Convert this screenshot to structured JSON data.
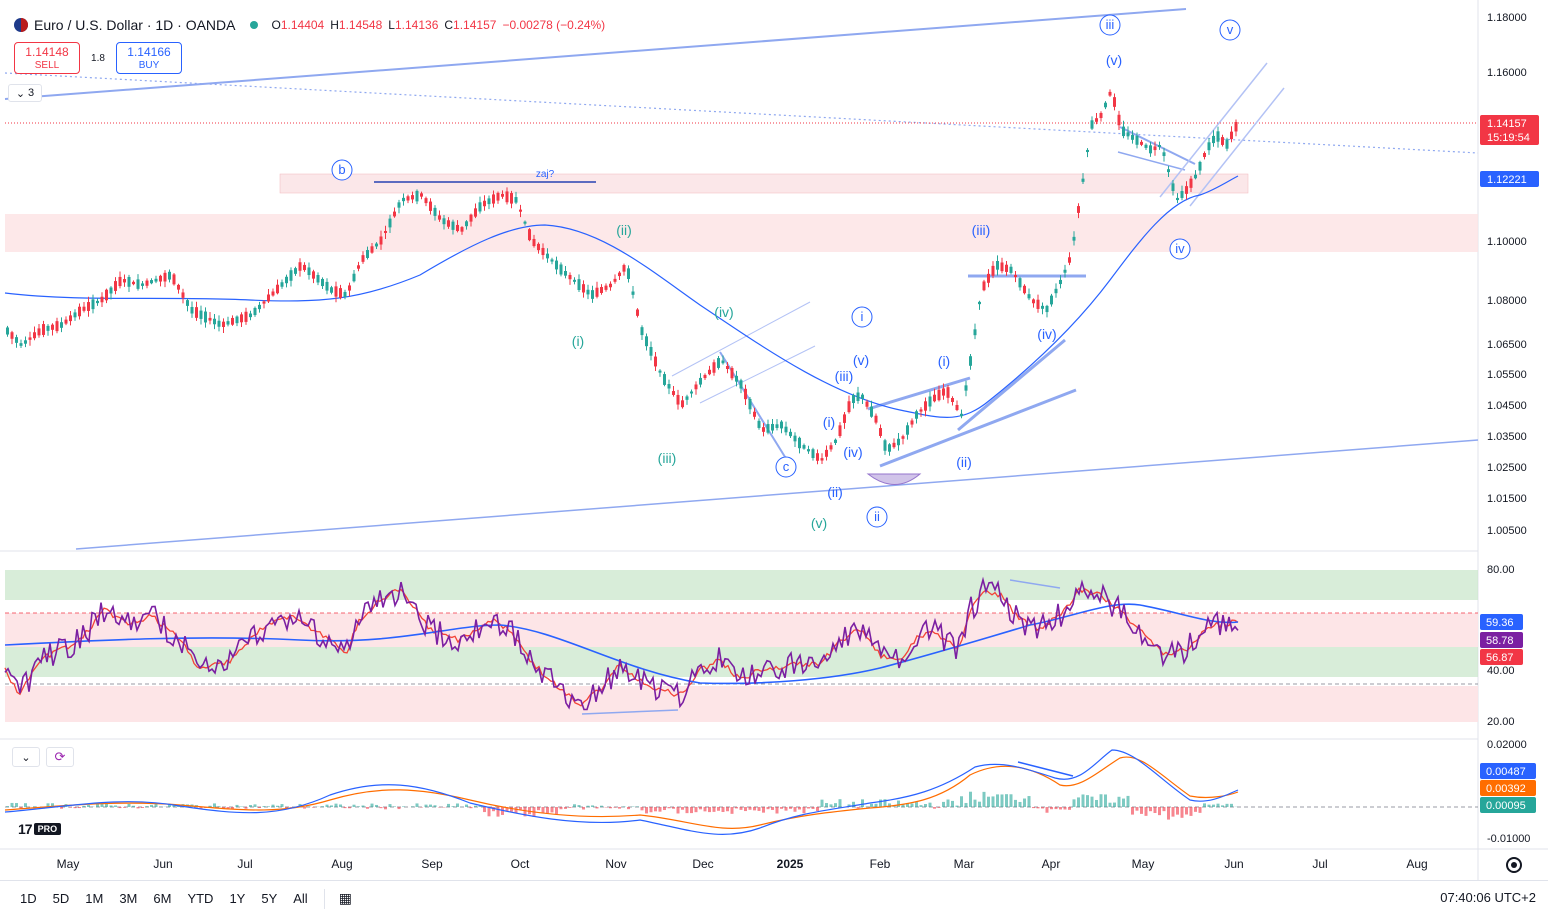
{
  "header": {
    "title": "Euro / U.S. Dollar · 1D · OANDA",
    "ohlc": [
      {
        "k": "O",
        "v": "1.14404"
      },
      {
        "k": "H",
        "v": "1.14548"
      },
      {
        "k": "L",
        "v": "1.14136"
      },
      {
        "k": "C",
        "v": "1.14157"
      },
      {
        "k": "",
        "v": "−0.00278 (−0.24%)"
      }
    ]
  },
  "trade": {
    "sell_price": "1.14148",
    "sell_label": "SELL",
    "spread": "1.8",
    "buy_price": "1.14166",
    "buy_label": "BUY"
  },
  "collapse_count": "3",
  "colors": {
    "up": "#26a69a",
    "down": "#f23645",
    "ma": "#2962ff",
    "drawing": "#8fa8f0",
    "wave_green": "#26a69a",
    "wave_blue": "#2962ff",
    "rsi": "#7b1fa2",
    "rsi_ma": "#f44336",
    "rsi_slow": "#2962ff",
    "macd": "#2962ff",
    "signal": "#ff6d00"
  },
  "price_axis": {
    "ticks": [
      "1.18000",
      "1.16000",
      "1.14157",
      "1.12221",
      "1.10000",
      "1.08000",
      "1.06500",
      "1.05500",
      "1.04500",
      "1.03500",
      "1.02500",
      "1.01500",
      "1.00500"
    ],
    "last_price": "1.14157",
    "countdown": "15:19:54",
    "ma_value": "1.12221"
  },
  "rsi_axis": {
    "ticks": [
      "80.00",
      "40.00",
      "20.00"
    ],
    "values": [
      "59.36",
      "58.78",
      "56.87"
    ]
  },
  "macd_axis": {
    "ticks": [
      "0.02000",
      "-0.01000"
    ],
    "values": [
      "0.00487",
      "0.00392",
      "0.00095"
    ]
  },
  "time_axis": [
    "May",
    "Jun",
    "Jul",
    "Aug",
    "Sep",
    "Oct",
    "Nov",
    "Dec",
    "2025",
    "Feb",
    "Mar",
    "Apr",
    "May",
    "Jun",
    "Jul",
    "Aug"
  ],
  "wave_labels": [
    {
      "text": "b",
      "style": "circle-blue"
    },
    {
      "text": "zaj?",
      "style": "small-blue"
    },
    {
      "text": "(ii)",
      "style": "green"
    },
    {
      "text": "(i)",
      "style": "green"
    },
    {
      "text": "(iv)",
      "style": "green"
    },
    {
      "text": "(iii)",
      "style": "green"
    },
    {
      "text": "(v)",
      "style": "green"
    },
    {
      "text": "c",
      "style": "circle-blue"
    },
    {
      "text": "i",
      "style": "circle-blue"
    },
    {
      "text": "(v)",
      "style": "blue"
    },
    {
      "text": "(iii)",
      "style": "blue"
    },
    {
      "text": "(i)",
      "style": "blue"
    },
    {
      "text": "(iv)",
      "style": "blue"
    },
    {
      "text": "(ii)",
      "style": "blue"
    },
    {
      "text": "ii",
      "style": "circle-blue"
    },
    {
      "text": "(i)",
      "style": "blue"
    },
    {
      "text": "(ii)",
      "style": "blue"
    },
    {
      "text": "(iii)",
      "style": "blue"
    },
    {
      "text": "(iv)",
      "style": "blue"
    },
    {
      "text": "iii",
      "style": "circle-blue"
    },
    {
      "text": "(v)",
      "style": "blue"
    },
    {
      "text": "iv",
      "style": "circle-blue"
    },
    {
      "text": "v",
      "style": "circle-blue"
    }
  ],
  "timeframes": [
    "1D",
    "5D",
    "1M",
    "3M",
    "6M",
    "YTD",
    "1Y",
    "5Y",
    "All"
  ],
  "clock": "07:40:06 UTC+2"
}
